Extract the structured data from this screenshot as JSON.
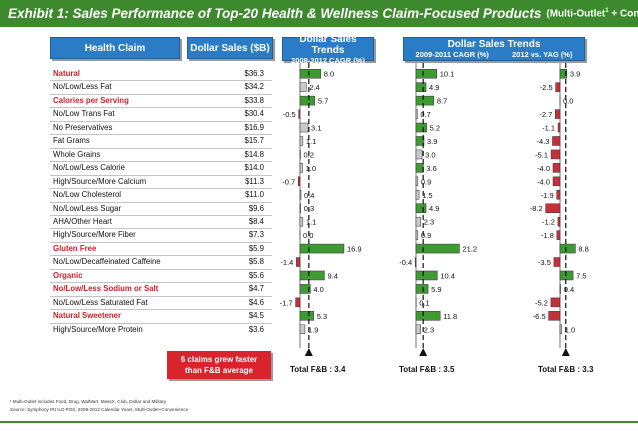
{
  "title": {
    "main": "Exhibit 1: Sales Performance of Top-20 Health & Wellness Claim-Focused Products",
    "sub_prefix": "(Multi-Outlet",
    "sub_sup": "1",
    "sub_suffix": " + Convenience)"
  },
  "headers": {
    "claim": "Health Claim",
    "sales": "Dollar Sales ($B)",
    "panel1_title": "Dollar Sales Trends",
    "panel1_sub": "2009-2012 CAGR  (%)",
    "panel2_title": "Dollar Sales Trends",
    "panel2_sub_a": "2009-2011 CAGR (%)",
    "panel2_sub_b": "2012 vs. YAG (%)"
  },
  "chart_data": {
    "type": "bar",
    "orientation": "horizontal",
    "categories": [
      "Natural",
      "No/Low/Less Fat",
      "Calories per Serving",
      "No/Low Trans Fat",
      "No Preservatives",
      "Fat Grams",
      "Whole Grains",
      "No/Low/Less Calorie",
      "High/Source/More Calcium",
      "No/Low Cholesterol",
      "No/Low/Less Sugar",
      "AHA/Other Heart",
      "High/Source/More Fiber",
      "Gluten Free",
      "No/Low/Decaffeinated Caffeine",
      "Organic",
      "No/Low/Less Sodium or Salt",
      "No/Low/Less Saturated Fat",
      "Natural Sweetener",
      "High/Source/More Protein"
    ],
    "highlighted": [
      true,
      false,
      true,
      false,
      false,
      false,
      false,
      false,
      false,
      false,
      false,
      false,
      false,
      true,
      false,
      true,
      true,
      false,
      true,
      false
    ],
    "dollar_sales_labels": [
      "$36.3",
      "$34.2",
      "$33.8",
      "$30.4",
      "$16.9",
      "$15.7",
      "$14.8",
      "$14.0",
      "$11.3",
      "$11.0",
      "$9.6",
      "$8.4",
      "$7.3",
      "$5.9",
      "$5.8",
      "$5.6",
      "$4.7",
      "$4.6",
      "$4.5",
      "$3.6"
    ],
    "series": [
      {
        "name": "2009-2012 CAGR (%)",
        "values": [
          8.0,
          2.4,
          5.7,
          -0.5,
          3.1,
          1.1,
          0.2,
          1.0,
          -0.7,
          0.4,
          0.3,
          1.1,
          0.0,
          16.9,
          -1.4,
          9.4,
          4.0,
          -1.7,
          5.3,
          1.9
        ],
        "labels": [
          "8.0",
          "2.4",
          "5.7",
          "-0.5",
          "3.1",
          "1.1",
          "0.2",
          "1.0",
          "-0.7",
          "0.4",
          "0.3",
          "1.1",
          "0.0",
          "16.9",
          "-1.4",
          "9.4",
          "4.0",
          "-1.7",
          "5.3",
          "1.9"
        ],
        "total_label": "Total F&B : 3.4",
        "average": 3.4
      },
      {
        "name": "2009-2011 CAGR (%)",
        "values": [
          10.1,
          4.9,
          8.7,
          0.7,
          5.2,
          3.9,
          3.0,
          3.6,
          0.9,
          1.5,
          4.9,
          2.3,
          0.9,
          21.2,
          -0.4,
          10.4,
          5.9,
          0.1,
          11.8,
          2.3
        ],
        "labels": [
          "10.1",
          "4.9",
          "8.7",
          "0.7",
          "5.2",
          "3.9",
          "3.0",
          "3.6",
          "0.9",
          "1.5",
          "4.9",
          "2.3",
          "0.9",
          "21.2",
          "-0.4",
          "10.4",
          "5.9",
          "0.1",
          "11.8",
          "2.3"
        ],
        "total_label": "Total F&B : 3.5",
        "average": 3.5
      },
      {
        "name": "2012 vs. YAG (%)",
        "values": [
          3.9,
          -2.5,
          0.0,
          -2.7,
          -1.1,
          -4.3,
          -5.1,
          -4.0,
          -4.0,
          -1.9,
          -8.2,
          -1.2,
          -1.8,
          8.8,
          -3.5,
          7.5,
          0.4,
          -5.2,
          -6.5,
          1.0
        ],
        "labels": [
          "3.9",
          "-2.5",
          "0.0",
          "-2.7",
          "-1.1",
          "-4.3",
          "-5.1",
          "-4.0",
          "-4.0",
          "-1.9",
          "-8.2",
          "-1.2",
          "-1.8",
          "8.8",
          "-3.5",
          "7.5",
          "0.4",
          "-5.2",
          "-6.5",
          "1.0"
        ],
        "total_label": "Total F&B : 3.3",
        "average": 3.3
      }
    ],
    "colors": {
      "above_average": "#3f9a34",
      "below_average": "#c9c9c9",
      "negative": "#c5303a",
      "reference_line": "#111111"
    }
  },
  "callout": {
    "line1": "6 claims grew faster",
    "line2": "than F&B average"
  },
  "footnotes": {
    "line1": "¹ Multi-Outlet includes Food, Drug, WalMart, MassX, Club, Dollar and Military",
    "line2": "Source: Symphony IRI ILD POS, 2009-2012 Calendar Years, Multi-Outlet+Convenience"
  }
}
